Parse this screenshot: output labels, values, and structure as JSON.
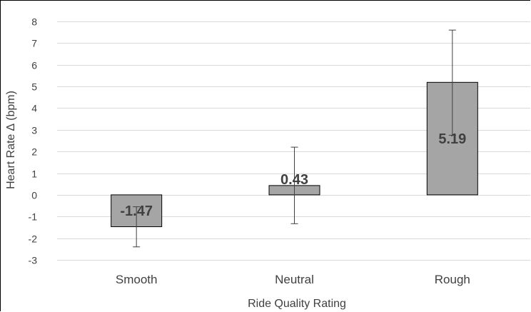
{
  "chart_data": {
    "type": "bar",
    "title": "",
    "xlabel": "Ride Quality Rating",
    "ylabel": "Heart Rate ∆ (bpm)",
    "categories": [
      "Smooth",
      "Neutral",
      "Rough"
    ],
    "values": [
      -1.47,
      0.43,
      5.19
    ],
    "data_labels": [
      "-1.47",
      "0.43",
      "5.19"
    ],
    "error_bars": {
      "lower": [
        -2.4,
        -1.33,
        2.75
      ],
      "upper": [
        -0.55,
        2.2,
        7.6
      ]
    },
    "ylim": [
      -3,
      8
    ],
    "yticks": [
      -3,
      -2,
      -1,
      0,
      1,
      2,
      3,
      4,
      5,
      6,
      7,
      8
    ],
    "ytick_labels": [
      "-3",
      "-2",
      "-1",
      "0",
      "1",
      "2",
      "3",
      "4",
      "5",
      "6",
      "7",
      "8"
    ],
    "grid": true,
    "legend": "none",
    "colors": {
      "bar_fill": "#a5a5a5",
      "bar_stroke": "#000000",
      "grid": "#d9d9d9",
      "error_bar": "#404040",
      "text": "#404040"
    }
  }
}
